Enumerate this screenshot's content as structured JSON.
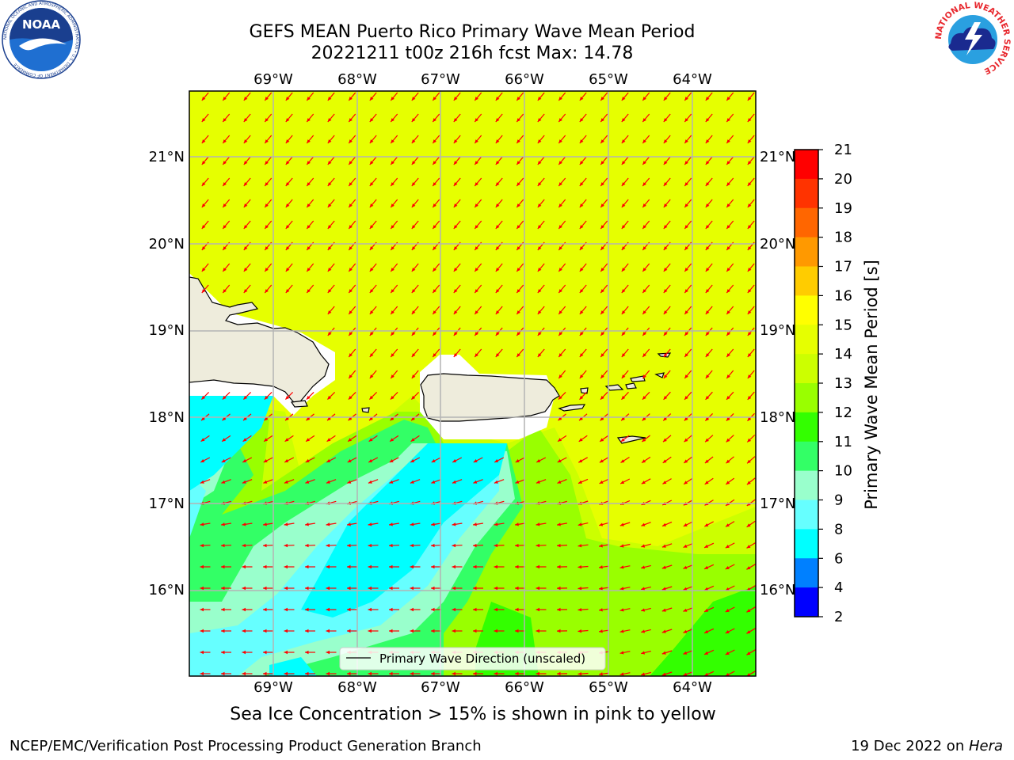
{
  "title": {
    "line1": "GEFS MEAN Puerto Rico Primary Wave Mean Period",
    "line2": "20221211 t00z 216h fcst   Max: 14.78"
  },
  "map": {
    "lon_labels": [
      "69°W",
      "68°W",
      "67°W",
      "66°W",
      "65°W",
      "64°W"
    ],
    "lat_labels": [
      "21°N",
      "20°N",
      "19°N",
      "18°N",
      "17°N",
      "16°N"
    ],
    "legend_label": "Primary Wave Direction (unscaled)",
    "colors": {
      "land": "#eeecdc",
      "arrow": "#ff0000",
      "grid": "#b4b4b4"
    }
  },
  "colorbar": {
    "label": "Primary Wave Mean Period [s]",
    "ticks": [
      "21",
      "20",
      "19",
      "18",
      "17",
      "16",
      "15",
      "14",
      "13",
      "12",
      "11",
      "10",
      "9",
      "8",
      "6",
      "4",
      "2"
    ],
    "colors": [
      "#ff0000",
      "#ff3300",
      "#ff6600",
      "#ff9900",
      "#ffcc00",
      "#ffff00",
      "#e6ff00",
      "#ccff00",
      "#99ff00",
      "#33ff00",
      "#33ff66",
      "#99ffcc",
      "#66ffff",
      "#00ffff",
      "#0080ff",
      "#0000ff"
    ]
  },
  "caption": "Sea Ice Concentration > 15% is shown in pink to yellow",
  "footer": {
    "left": "NCEP/EMC/Verification Post Processing Product Generation Branch",
    "date": "19 Dec 2022 on ",
    "machine": "Hera"
  },
  "logos": {
    "noaa": "NOAA",
    "noaa_ring_text": "NATIONAL OCEANIC AND ATMOSPHERIC ADMINISTRATION • U.S. DEPARTMENT OF COMMERCE",
    "nws_ring_text": "NATIONAL WEATHER SERVICE"
  }
}
